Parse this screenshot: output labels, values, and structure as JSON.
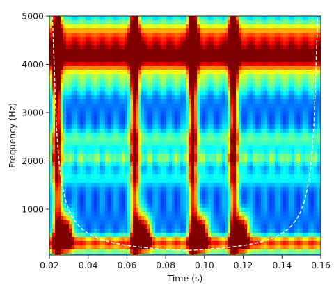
{
  "chart_data": {
    "type": "heatmap",
    "xlabel": "Time (s)",
    "ylabel": "Frequency (Hz)",
    "xlim": [
      0.02,
      0.16
    ],
    "ylim": [
      50,
      5000
    ],
    "x_ticks": [
      0.02,
      0.04,
      0.06,
      0.08,
      0.1,
      0.12,
      0.14,
      0.16
    ],
    "x_tick_labels": [
      "0.02",
      "0.04",
      "0.06",
      "0.08",
      "0.10",
      "0.12",
      "0.14",
      "0.16"
    ],
    "y_ticks": [
      1000,
      2000,
      3000,
      4000,
      5000
    ],
    "y_tick_labels": [
      "1000",
      "2000",
      "3000",
      "4000",
      "5000"
    ],
    "colormap": "jet",
    "colors": {
      "low": "#1f5fe0",
      "blue": "#2a9be8",
      "cyan": "#2fd0e8",
      "green": "#3ee07a",
      "yellow": "#f2ea2a",
      "orange": "#ff8a1a",
      "red": "#ff1a10",
      "cone_of_influence": "#ffffff"
    },
    "bands": [
      {
        "y_center": 4150,
        "half_width": 320,
        "level": 1.0
      },
      {
        "y_center": 4600,
        "half_width": 250,
        "level": 0.7
      },
      {
        "y_center": 2050,
        "half_width": 150,
        "level": 0.58
      },
      {
        "y_center": 300,
        "half_width": 180,
        "level": 0.5
      }
    ],
    "transients": [
      0.024,
      0.064,
      0.094,
      0.115
    ],
    "cone_of_influence": {
      "t_start": 0.02,
      "t_end": 0.16,
      "style": "dashed"
    },
    "grid": false
  }
}
